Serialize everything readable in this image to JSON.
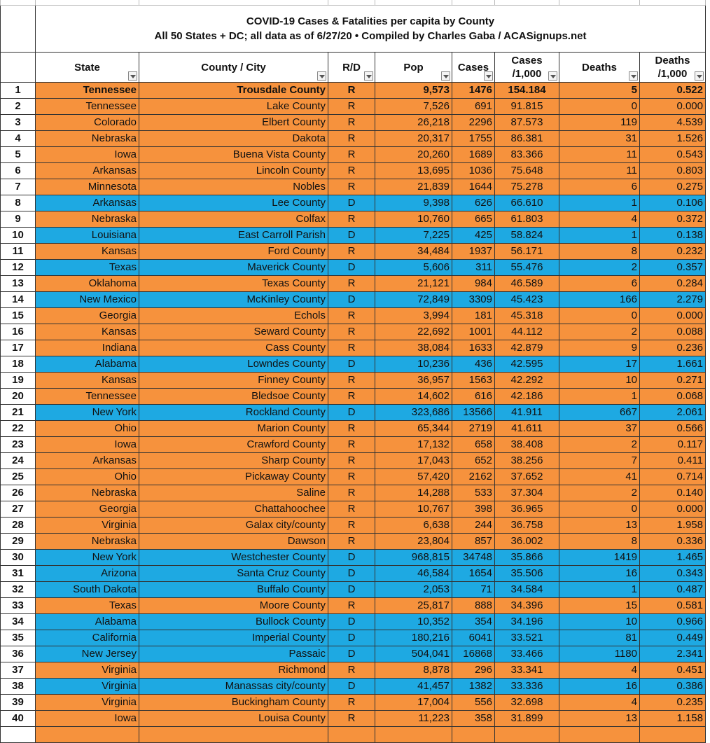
{
  "table": {
    "title": [
      "COVID-19 Cases & Fatalities per capita by County",
      "All 50 States + DC; all data as of 6/27/20 • Compiled by Charles Gaba / ACASignups.net"
    ],
    "headers": [
      [
        "State"
      ],
      [
        "County / City"
      ],
      [
        "R/D"
      ],
      [
        "Pop"
      ],
      [
        "Cases"
      ],
      [
        "Cases",
        "/1,000"
      ],
      [
        "Deaths"
      ],
      [
        "Deaths",
        "/1,000"
      ]
    ],
    "rows": [
      [
        "1",
        "Tennessee",
        "Trousdale County",
        "R",
        "9,573",
        "1476",
        "154.184",
        "5",
        "0.522"
      ],
      [
        "2",
        "Tennessee",
        "Lake County",
        "R",
        "7,526",
        "691",
        "91.815",
        "0",
        "0.000"
      ],
      [
        "3",
        "Colorado",
        "Elbert County",
        "R",
        "26,218",
        "2296",
        "87.573",
        "119",
        "4.539"
      ],
      [
        "4",
        "Nebraska",
        "Dakota",
        "R",
        "20,317",
        "1755",
        "86.381",
        "31",
        "1.526"
      ],
      [
        "5",
        "Iowa",
        "Buena Vista County",
        "R",
        "20,260",
        "1689",
        "83.366",
        "11",
        "0.543"
      ],
      [
        "6",
        "Arkansas",
        "Lincoln County",
        "R",
        "13,695",
        "1036",
        "75.648",
        "11",
        "0.803"
      ],
      [
        "7",
        "Minnesota",
        "Nobles",
        "R",
        "21,839",
        "1644",
        "75.278",
        "6",
        "0.275"
      ],
      [
        "8",
        "Arkansas",
        "Lee County",
        "D",
        "9,398",
        "626",
        "66.610",
        "1",
        "0.106"
      ],
      [
        "9",
        "Nebraska",
        "Colfax",
        "R",
        "10,760",
        "665",
        "61.803",
        "4",
        "0.372"
      ],
      [
        "10",
        "Louisiana",
        "East Carroll Parish",
        "D",
        "7,225",
        "425",
        "58.824",
        "1",
        "0.138"
      ],
      [
        "11",
        "Kansas",
        "Ford County",
        "R",
        "34,484",
        "1937",
        "56.171",
        "8",
        "0.232"
      ],
      [
        "12",
        "Texas",
        "Maverick County",
        "D",
        "5,606",
        "311",
        "55.476",
        "2",
        "0.357"
      ],
      [
        "13",
        "Oklahoma",
        "Texas County",
        "R",
        "21,121",
        "984",
        "46.589",
        "6",
        "0.284"
      ],
      [
        "14",
        "New Mexico",
        "McKinley County",
        "D",
        "72,849",
        "3309",
        "45.423",
        "166",
        "2.279"
      ],
      [
        "15",
        "Georgia",
        "Echols",
        "R",
        "3,994",
        "181",
        "45.318",
        "0",
        "0.000"
      ],
      [
        "16",
        "Kansas",
        "Seward County",
        "R",
        "22,692",
        "1001",
        "44.112",
        "2",
        "0.088"
      ],
      [
        "17",
        "Indiana",
        "Cass County",
        "R",
        "38,084",
        "1633",
        "42.879",
        "9",
        "0.236"
      ],
      [
        "18",
        "Alabama",
        "Lowndes County",
        "D",
        "10,236",
        "436",
        "42.595",
        "17",
        "1.661"
      ],
      [
        "19",
        "Kansas",
        "Finney County",
        "R",
        "36,957",
        "1563",
        "42.292",
        "10",
        "0.271"
      ],
      [
        "20",
        "Tennessee",
        "Bledsoe County",
        "R",
        "14,602",
        "616",
        "42.186",
        "1",
        "0.068"
      ],
      [
        "21",
        "New York",
        "Rockland County",
        "D",
        "323,686",
        "13566",
        "41.911",
        "667",
        "2.061"
      ],
      [
        "22",
        "Ohio",
        "Marion County",
        "R",
        "65,344",
        "2719",
        "41.611",
        "37",
        "0.566"
      ],
      [
        "23",
        "Iowa",
        "Crawford County",
        "R",
        "17,132",
        "658",
        "38.408",
        "2",
        "0.117"
      ],
      [
        "24",
        "Arkansas",
        "Sharp County",
        "R",
        "17,043",
        "652",
        "38.256",
        "7",
        "0.411"
      ],
      [
        "25",
        "Ohio",
        "Pickaway County",
        "R",
        "57,420",
        "2162",
        "37.652",
        "41",
        "0.714"
      ],
      [
        "26",
        "Nebraska",
        "Saline",
        "R",
        "14,288",
        "533",
        "37.304",
        "2",
        "0.140"
      ],
      [
        "27",
        "Georgia",
        "Chattahoochee",
        "R",
        "10,767",
        "398",
        "36.965",
        "0",
        "0.000"
      ],
      [
        "28",
        "Virginia",
        "Galax city/county",
        "R",
        "6,638",
        "244",
        "36.758",
        "13",
        "1.958"
      ],
      [
        "29",
        "Nebraska",
        "Dawson",
        "R",
        "23,804",
        "857",
        "36.002",
        "8",
        "0.336"
      ],
      [
        "30",
        "New York",
        "Westchester County",
        "D",
        "968,815",
        "34748",
        "35.866",
        "1419",
        "1.465"
      ],
      [
        "31",
        "Arizona",
        "Santa Cruz County",
        "D",
        "46,584",
        "1654",
        "35.506",
        "16",
        "0.343"
      ],
      [
        "32",
        "South Dakota",
        "Buffalo County",
        "D",
        "2,053",
        "71",
        "34.584",
        "1",
        "0.487"
      ],
      [
        "33",
        "Texas",
        "Moore County",
        "R",
        "25,817",
        "888",
        "34.396",
        "15",
        "0.581"
      ],
      [
        "34",
        "Alabama",
        "Bullock County",
        "D",
        "10,352",
        "354",
        "34.196",
        "10",
        "0.966"
      ],
      [
        "35",
        "California",
        "Imperial County",
        "D",
        "180,216",
        "6041",
        "33.521",
        "81",
        "0.449"
      ],
      [
        "36",
        "New Jersey",
        "Passaic",
        "D",
        "504,041",
        "16868",
        "33.466",
        "1180",
        "2.341"
      ],
      [
        "37",
        "Virginia",
        "Richmond",
        "R",
        "8,878",
        "296",
        "33.341",
        "4",
        "0.451"
      ],
      [
        "38",
        "Virginia",
        "Manassas city/county",
        "D",
        "41,457",
        "1382",
        "33.336",
        "16",
        "0.386"
      ],
      [
        "39",
        "Virginia",
        "Buckingham County",
        "R",
        "17,004",
        "556",
        "32.698",
        "4",
        "0.235"
      ],
      [
        "40",
        "Iowa",
        "Louisa County",
        "R",
        "11,223",
        "358",
        "31.899",
        "13",
        "1.158"
      ]
    ]
  }
}
